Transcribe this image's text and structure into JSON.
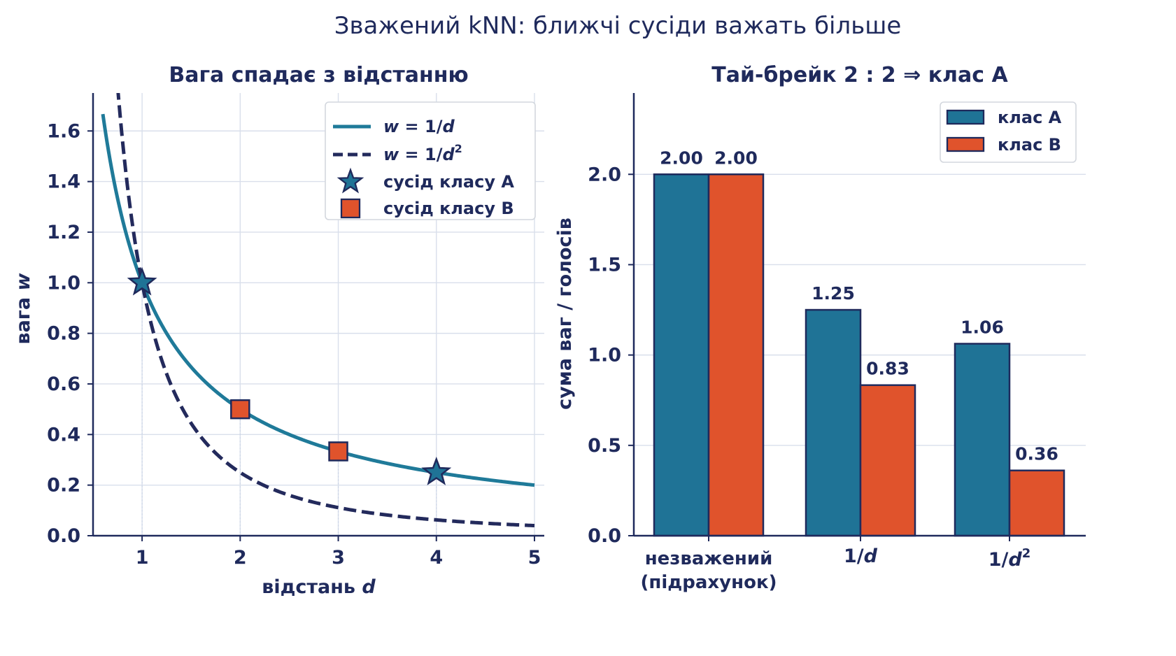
{
  "figure": {
    "suptitle": "Зважений kNN: ближчі сусіди важать більше"
  },
  "colors": {
    "ink": "#1f2a5c",
    "teal": "#1f7396",
    "orange": "#e0532c",
    "grid": "#d9dfeb",
    "classA": "#1f7396",
    "classB": "#e0532c",
    "curve1": "#1f7a99",
    "curve2": "#232a5c"
  },
  "chart_data": [
    {
      "type": "line",
      "title": "Вага спадає з відстанню",
      "xlabel_prefix": "відстань ",
      "xlabel_var": "d",
      "ylabel_prefix": "вага ",
      "ylabel_var": "w",
      "xlim": [
        0.5,
        5.1
      ],
      "ylim": [
        0,
        1.75
      ],
      "xticks": [
        "1",
        "2",
        "3",
        "4",
        "5"
      ],
      "yticks": [
        "0.0",
        "0.2",
        "0.4",
        "0.6",
        "0.8",
        "1.0",
        "1.2",
        "1.4",
        "1.6"
      ],
      "grid": true,
      "legend_position": "top-right",
      "series": [
        {
          "name": "w = 1/d",
          "label_lhs": "w",
          "label_rhs": "= 1/",
          "label_var": "d",
          "label_sup": "",
          "style": "solid",
          "formula": "1/d",
          "x_range": [
            0.6,
            5.0
          ]
        },
        {
          "name": "w = 1/d²",
          "label_lhs": "w",
          "label_rhs": "= 1/",
          "label_var": "d",
          "label_sup": "2",
          "style": "dashed",
          "formula": "1/d^2",
          "x_range": [
            0.6,
            5.0
          ]
        }
      ],
      "points": [
        {
          "name": "сусід класу A",
          "marker": "star",
          "x": [
            1,
            4
          ],
          "y": [
            1.0,
            0.25
          ]
        },
        {
          "name": "сусід класу B",
          "marker": "square",
          "x": [
            2,
            3
          ],
          "y": [
            0.5,
            0.3333
          ]
        }
      ]
    },
    {
      "type": "bar",
      "title": "Тай-брейк 2 : 2 ⇒  клас A",
      "ylabel": "сума ваг / голосів",
      "ylim": [
        0,
        2.45
      ],
      "yticks": [
        "0.0",
        "0.5",
        "1.0",
        "1.5",
        "2.0"
      ],
      "grid": true,
      "legend_position": "top-right",
      "categories": [
        {
          "line1": "незважений",
          "line2": "(підрахунок)"
        },
        {
          "line1": "1/",
          "var": "d",
          "sup": ""
        },
        {
          "line1": "1/",
          "var": "d",
          "sup": "2"
        }
      ],
      "series": [
        {
          "name": "клас A",
          "values": [
            2.0,
            1.25,
            1.0625
          ],
          "labels": [
            "2.00",
            "1.25",
            "1.06"
          ]
        },
        {
          "name": "клас B",
          "values": [
            2.0,
            0.8333,
            0.3611
          ],
          "labels": [
            "2.00",
            "0.83",
            "0.36"
          ]
        }
      ]
    }
  ]
}
